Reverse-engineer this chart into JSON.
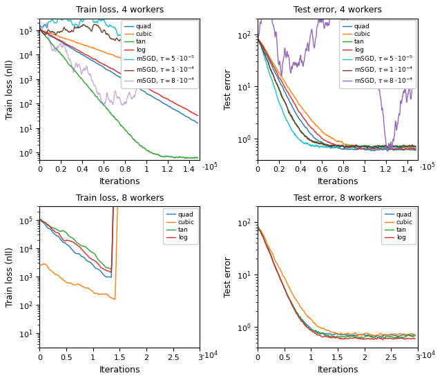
{
  "top_left": {
    "title": "Train loss, 4 workers",
    "xlabel": "Iterations",
    "ylabel": "Train loss (nll)",
    "xlim": [
      0,
      150000
    ],
    "ylim_log": [
      0.5,
      300000
    ],
    "xticks": [
      0,
      20000,
      40000,
      60000,
      80000,
      100000,
      120000,
      140000
    ],
    "xtick_labels": [
      "0",
      "0.2",
      "0.4",
      "0.6",
      "0.8",
      "1",
      "1.2",
      "1.4"
    ]
  },
  "top_right": {
    "title": "Test error, 4 workers",
    "xlabel": "Iterations",
    "ylabel": "Test error",
    "xlim": [
      0,
      150000
    ],
    "ylim_log": [
      0.4,
      200
    ],
    "xticks": [
      0,
      20000,
      40000,
      60000,
      80000,
      100000,
      120000,
      140000
    ],
    "xtick_labels": [
      "0",
      "0.2",
      "0.4",
      "0.6",
      "0.8",
      "1",
      "1.2",
      "1.4"
    ]
  },
  "bottom_left": {
    "title": "Train loss, 8 workers",
    "xlabel": "Iterations",
    "ylabel": "Train loss (nll)",
    "xlim": [
      0,
      30000
    ],
    "ylim_log": [
      3,
      300000
    ],
    "xticks": [
      0,
      5000,
      10000,
      15000,
      20000,
      25000,
      30000
    ],
    "xtick_labels": [
      "0",
      "0.5",
      "1",
      "1.5",
      "2",
      "2.5",
      "3"
    ]
  },
  "bottom_right": {
    "title": "Test error, 8 workers",
    "xlabel": "Iterations",
    "ylabel": "Test error",
    "xlim": [
      0,
      30000
    ],
    "ylim_log": [
      0.4,
      200
    ],
    "xticks": [
      0,
      5000,
      10000,
      15000,
      20000,
      25000,
      30000
    ],
    "xtick_labels": [
      "0",
      "0.5",
      "1",
      "1.5",
      "2",
      "2.5",
      "3"
    ]
  },
  "colors": {
    "quad": "#1f77b4",
    "cubic": "#ff7f0e",
    "tan": "#2ca02c",
    "log": "#d62728",
    "msgd_5e5": "#17becf",
    "msgd_1e4": "#6B3A2A",
    "msgd_8e4": "#9467bd"
  },
  "legend_4w": [
    "quad",
    "cubic",
    "tan",
    "log",
    "mSGD, $\\tau = 5 \\cdot 10^{-5}$",
    "mSGD, $\\tau = 1 \\cdot 10^{-4}$",
    "mSGD, $\\tau = 8 \\cdot 10^{-4}$"
  ],
  "legend_8w": [
    "quad",
    "cubic",
    "tan",
    "log"
  ]
}
